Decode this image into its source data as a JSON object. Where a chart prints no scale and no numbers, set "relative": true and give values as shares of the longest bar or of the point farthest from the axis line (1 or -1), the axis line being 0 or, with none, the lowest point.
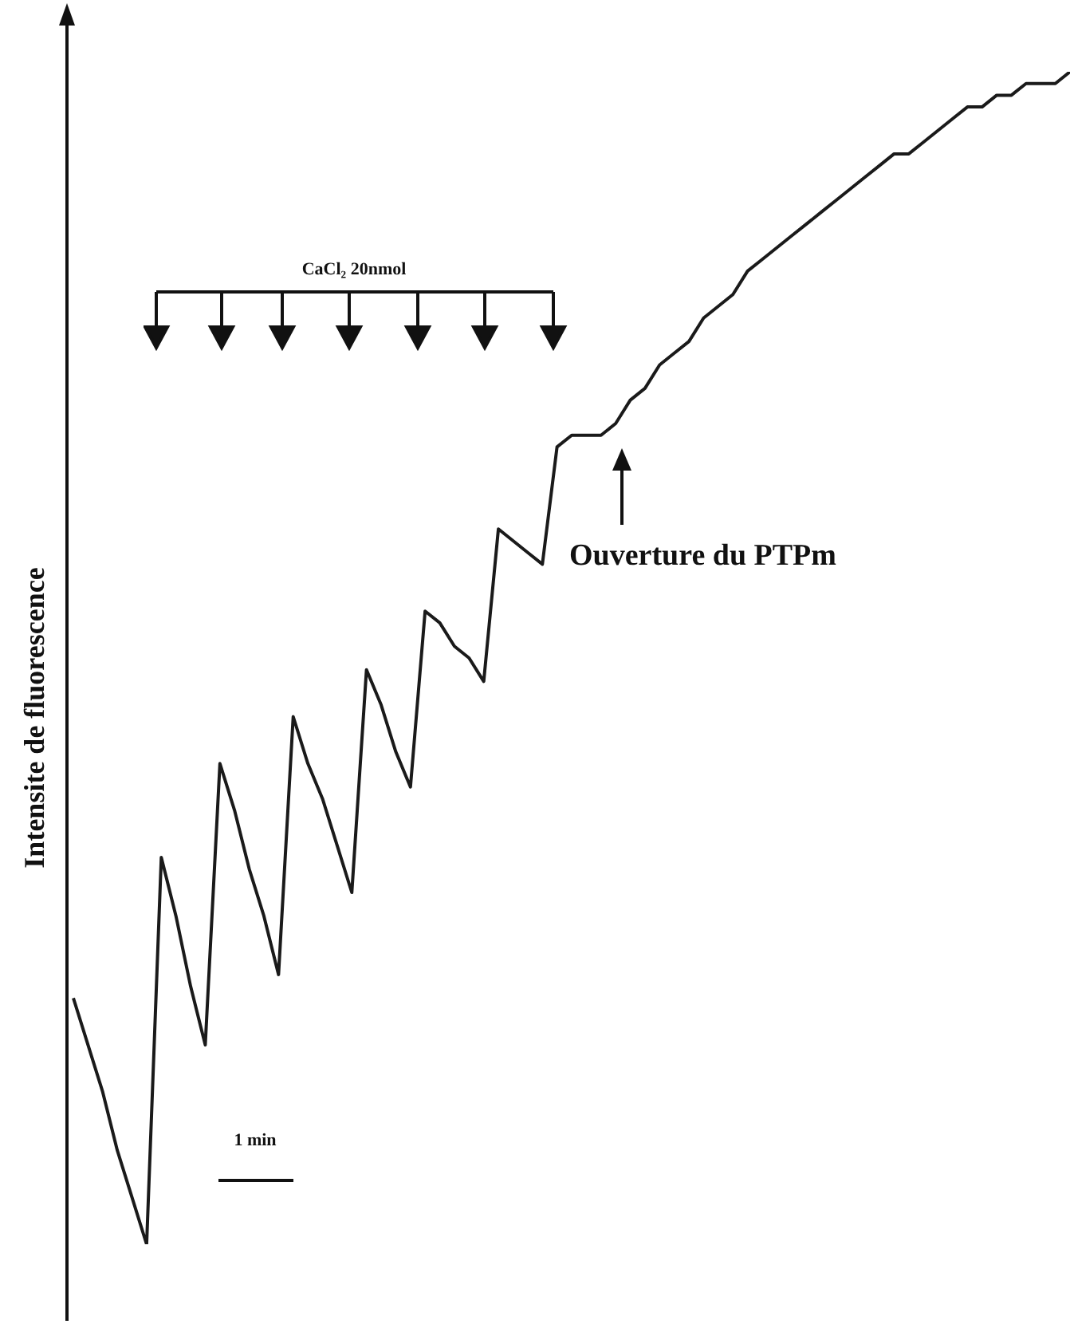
{
  "chart_data": {
    "type": "line",
    "relative": true,
    "ylabel": "Intensite de fluorescence",
    "annotations": [
      "CaCl₂ 20nmol",
      "Ouverture du PTPm",
      "1 min"
    ],
    "legend": false,
    "marker": "none",
    "line_style": "solid",
    "categories": [
      null,
      null,
      null,
      null,
      null,
      null,
      null,
      null,
      null,
      null,
      null,
      null,
      null,
      null,
      null,
      null,
      null,
      null,
      null,
      null,
      null,
      null,
      null,
      null,
      null,
      null,
      null,
      null,
      null,
      null,
      null,
      null,
      null,
      null,
      null,
      null,
      null,
      null,
      null,
      null,
      null,
      null,
      null,
      null,
      null,
      null,
      null,
      null,
      null,
      null,
      null,
      null,
      null,
      null,
      null,
      null,
      null,
      null,
      null,
      null,
      null,
      null,
      null,
      null,
      null,
      null,
      null,
      null,
      null
    ],
    "series": [
      {
        "color": "#1a1a1a",
        "values": [
          0.21,
          0.17,
          0.13,
          0.08,
          0.04,
          0,
          0.33,
          0.28,
          0.22,
          0.17,
          0.41,
          0.37,
          0.32,
          0.28,
          0.23,
          0.45,
          0.41,
          0.38,
          0.34,
          0.3,
          0.49,
          0.46,
          0.42,
          0.39,
          0.54,
          0.53,
          0.51,
          0.5,
          0.48,
          0.61,
          0.6,
          0.59,
          0.58,
          0.68,
          0.69,
          0.69,
          0.69,
          0.7,
          0.72,
          0.73,
          0.75,
          0.76,
          0.77,
          0.79,
          0.8,
          0.81,
          0.83,
          0.84,
          0.85,
          0.86,
          0.87,
          0.88,
          0.89,
          0.9,
          0.91,
          0.92,
          0.93,
          0.93,
          0.94,
          0.95,
          0.96,
          0.97,
          0.97,
          0.98,
          0.98,
          0.99,
          0.99,
          0.99,
          1
        ]
      }
    ]
  }
}
